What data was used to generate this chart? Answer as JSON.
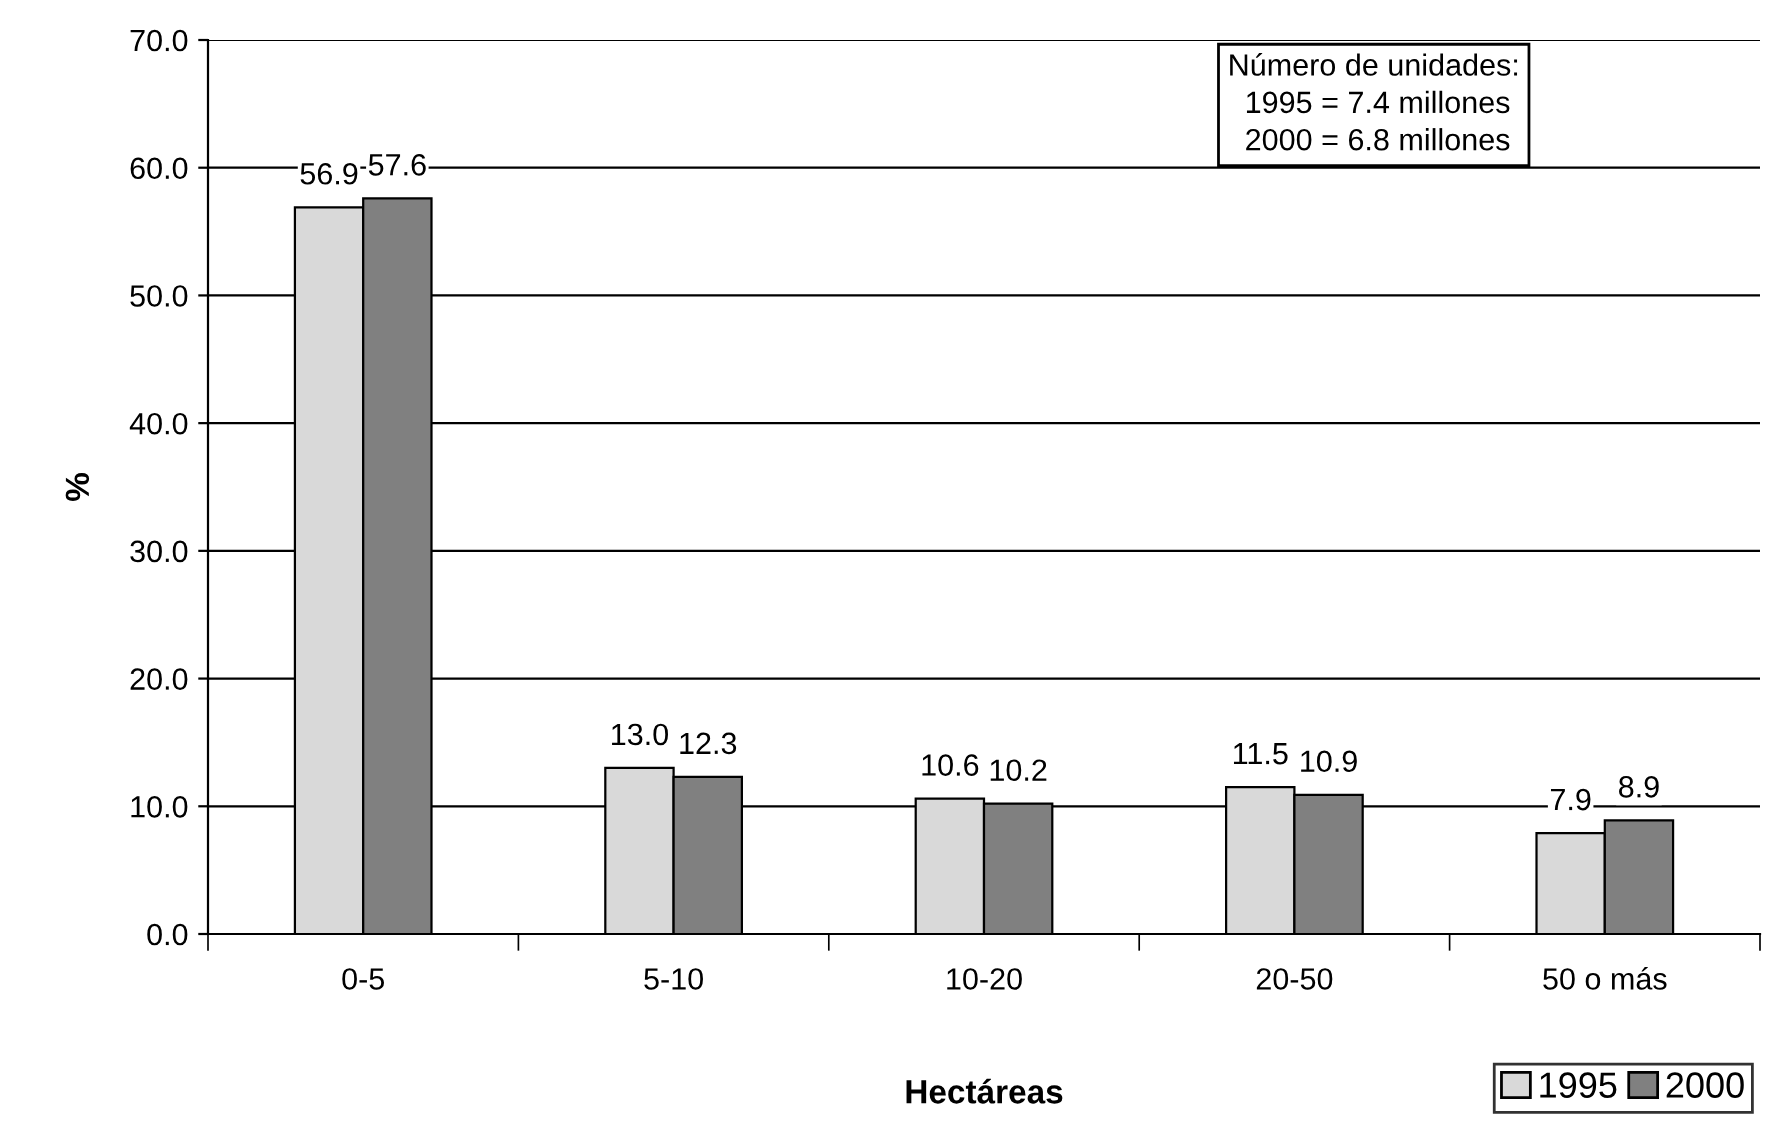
{
  "chart_data": {
    "type": "bar",
    "xlabel": "Hectáreas",
    "ylabel": "%",
    "categories": [
      "0-5",
      "5-10",
      "10-20",
      "20-50",
      "50 o más"
    ],
    "series": [
      {
        "name": "1995",
        "color": "#d9d9d9",
        "values": [
          56.9,
          13.0,
          10.6,
          11.5,
          7.9
        ],
        "value_labels": [
          "56.9",
          "13.0",
          "10.6",
          "11.5",
          "7.9"
        ]
      },
      {
        "name": "2000",
        "color": "#808080",
        "values": [
          57.6,
          12.3,
          10.2,
          10.9,
          8.9
        ],
        "value_labels": [
          "57.6",
          "12.3",
          "10.2",
          "10.9",
          "8.9"
        ]
      }
    ],
    "ylim": [
      0,
      70
    ],
    "yticks": [
      {
        "value": 0,
        "label": "0.0"
      },
      {
        "value": 10,
        "label": "10.0"
      },
      {
        "value": 20,
        "label": "20.0"
      },
      {
        "value": 30,
        "label": "30.0"
      },
      {
        "value": 40,
        "label": "40.0"
      },
      {
        "value": 50,
        "label": "50.0"
      },
      {
        "value": 60,
        "label": "60.0"
      },
      {
        "value": 70,
        "label": "70.0"
      }
    ],
    "grid": "y",
    "legend": "bottom right",
    "annotations": [
      "Número de unidades:\n  1995 = 7.4 millones\n  2000 = 6.8 millones"
    ]
  }
}
